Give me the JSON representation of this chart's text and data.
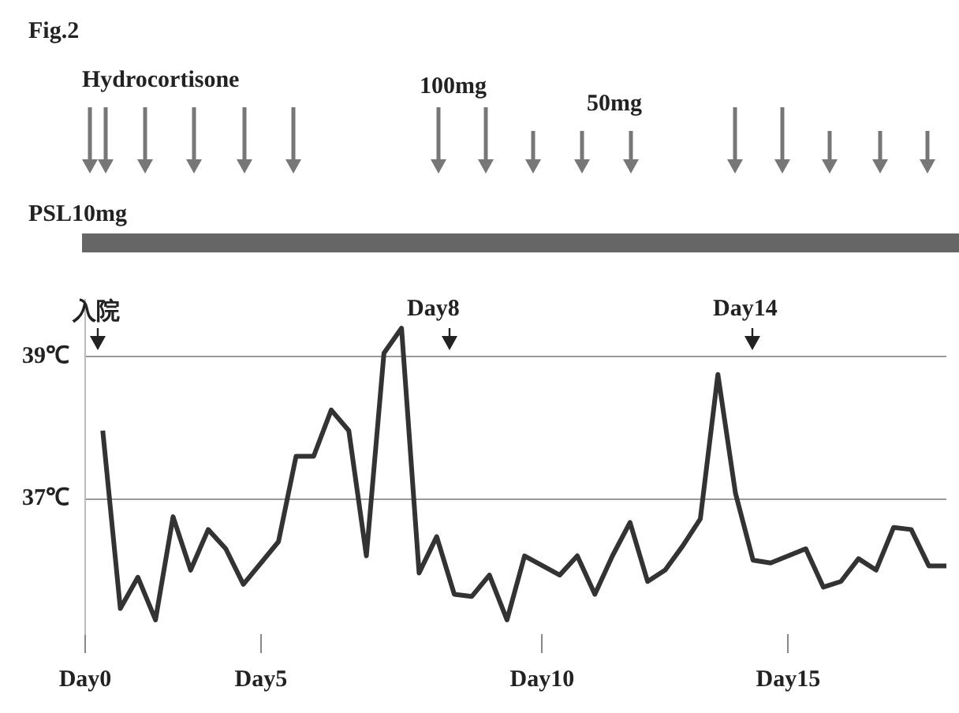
{
  "chart_data": {
    "type": "line",
    "title": "Fig.2",
    "annotations": [
      "Hydrocortisone",
      "100mg",
      "50mg",
      "PSL10mg",
      "入院",
      "Day8",
      "Day14"
    ],
    "categories": [
      "Day0",
      null,
      null,
      null,
      null,
      null,
      null,
      null,
      null,
      null,
      "Day5",
      null,
      null,
      null,
      null,
      null,
      null,
      null,
      null,
      null,
      null,
      null,
      null,
      null,
      null,
      null,
      "Day10",
      null,
      null,
      null,
      null,
      null,
      null,
      null,
      null,
      null,
      null,
      null,
      null,
      null,
      "Day15",
      null,
      null,
      null,
      null,
      null,
      null,
      null,
      null,
      null
    ],
    "series": [
      {
        "color": "#333333",
        "values": [
          null,
          37.96,
          35.46,
          35.9,
          35.3,
          36.75,
          36.0,
          36.57,
          36.3,
          35.8,
          null,
          36.4,
          37.6,
          37.6,
          38.25,
          37.96,
          36.2,
          39.05,
          39.4,
          35.96,
          36.47,
          35.66,
          35.63,
          35.93,
          35.3,
          36.2,
          null,
          35.93,
          36.2,
          35.66,
          36.2,
          36.67,
          35.84,
          36.0,
          36.34,
          36.72,
          38.75,
          37.08,
          36.14,
          36.1,
          null,
          36.3,
          35.76,
          35.84,
          36.16,
          36.0,
          36.6,
          36.57,
          36.06,
          36.06
        ]
      }
    ],
    "ylim": [
      35.1,
      39.8
    ],
    "yticks": [
      {
        "value": 37,
        "label": "37℃"
      },
      {
        "value": 39,
        "label": "39℃"
      }
    ],
    "grid": "y",
    "legend": false,
    "marker": "none",
    "line_style": "solid"
  }
}
